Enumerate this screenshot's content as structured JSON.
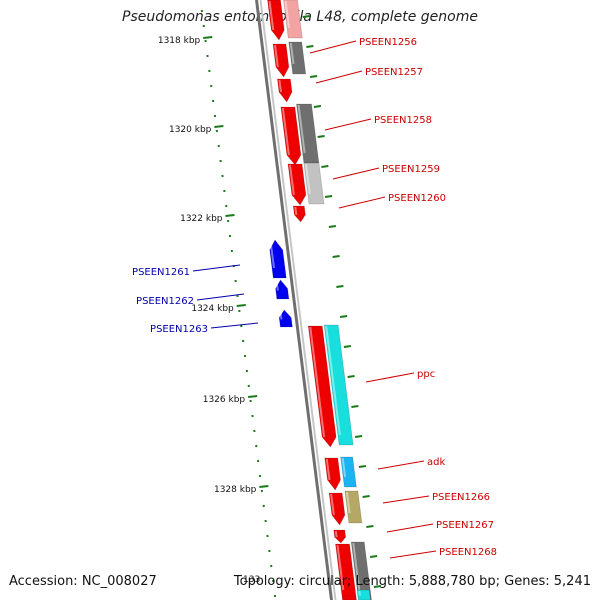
{
  "title": "Pseudomonas entomophila L48, complete genome",
  "accession": "Accession: NC_008027",
  "summary": "Topology: circular; Length: 5,888,780 bp; Genes: 5,241",
  "tick_stub": "133",
  "colors": {
    "backbone": "#8c8c8c",
    "tick": "#1a7a1a",
    "forward_label": "#cc0000",
    "reverse_label": "#0000aa"
  },
  "ticks": [
    {
      "label": "1318 kbp"
    },
    {
      "label": "1320 kbp"
    },
    {
      "label": "1322 kbp"
    },
    {
      "label": "1324 kbp"
    },
    {
      "label": "1326 kbp"
    },
    {
      "label": "1328 kbp"
    }
  ],
  "forward_labels": [
    {
      "text": "PSEEN1256"
    },
    {
      "text": "PSEEN1257"
    },
    {
      "text": "PSEEN1258"
    },
    {
      "text": "PSEEN1259"
    },
    {
      "text": "PSEEN1260"
    },
    {
      "text": "ppc"
    },
    {
      "text": "adk"
    },
    {
      "text": "PSEEN1266"
    },
    {
      "text": "PSEEN1267"
    },
    {
      "text": "PSEEN1268"
    }
  ],
  "reverse_labels": [
    {
      "text": "PSEEN1261"
    },
    {
      "text": "PSEEN1262"
    },
    {
      "text": "PSEEN1263"
    }
  ]
}
